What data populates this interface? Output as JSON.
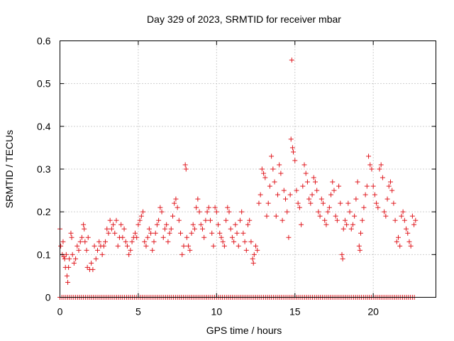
{
  "chart_data": {
    "type": "scatter",
    "title": "Day 329 of 2023, SRMTID for receiver mbar",
    "xlabel": "GPS time / hours",
    "ylabel": "SRMTID / TECUs",
    "xlim": [
      0,
      24
    ],
    "ylim": [
      0,
      0.6
    ],
    "x_ticks": [
      0,
      5,
      10,
      15,
      20
    ],
    "x_tick_labels": [
      "0",
      "5",
      "10",
      "15",
      "20"
    ],
    "y_ticks": [
      0,
      0.1,
      0.2,
      0.3,
      0.4,
      0.5,
      0.6
    ],
    "y_tick_labels": [
      "0",
      "0.1",
      "0.2",
      "0.3",
      "0.4",
      "0.5",
      "0.6"
    ],
    "grid": true,
    "legend": "none",
    "marker": "+",
    "color": "#e0191f",
    "series": [
      {
        "name": "SRMTID",
        "points": [
          [
            0.0,
            0.16
          ],
          [
            0.05,
            0.12
          ],
          [
            0.15,
            0.1
          ],
          [
            0.2,
            0.13
          ],
          [
            0.25,
            0.095
          ],
          [
            0.3,
            0.09
          ],
          [
            0.35,
            0.07
          ],
          [
            0.4,
            0.1
          ],
          [
            0.45,
            0.05
          ],
          [
            0.5,
            0.035
          ],
          [
            0.55,
            0.07
          ],
          [
            0.6,
            0.09
          ],
          [
            0.7,
            0.15
          ],
          [
            0.75,
            0.14
          ],
          [
            0.8,
            0.1
          ],
          [
            0.9,
            0.08
          ],
          [
            1.0,
            0.09
          ],
          [
            1.1,
            0.12
          ],
          [
            1.2,
            0.11
          ],
          [
            1.3,
            0.13
          ],
          [
            1.4,
            0.14
          ],
          [
            1.5,
            0.17
          ],
          [
            1.55,
            0.16
          ],
          [
            1.6,
            0.13
          ],
          [
            1.7,
            0.11
          ],
          [
            1.75,
            0.07
          ],
          [
            1.8,
            0.14
          ],
          [
            1.9,
            0.065
          ],
          [
            2.0,
            0.08
          ],
          [
            2.1,
            0.065
          ],
          [
            2.2,
            0.12
          ],
          [
            2.3,
            0.09
          ],
          [
            2.4,
            0.11
          ],
          [
            2.5,
            0.13
          ],
          [
            2.6,
            0.12
          ],
          [
            2.7,
            0.1
          ],
          [
            2.8,
            0.12
          ],
          [
            2.9,
            0.13
          ],
          [
            3.0,
            0.16
          ],
          [
            3.1,
            0.15
          ],
          [
            3.2,
            0.18
          ],
          [
            3.3,
            0.16
          ],
          [
            3.4,
            0.17
          ],
          [
            3.5,
            0.15
          ],
          [
            3.6,
            0.18
          ],
          [
            3.7,
            0.12
          ],
          [
            3.8,
            0.14
          ],
          [
            3.9,
            0.17
          ],
          [
            4.0,
            0.14
          ],
          [
            4.1,
            0.16
          ],
          [
            4.2,
            0.13
          ],
          [
            4.3,
            0.12
          ],
          [
            4.4,
            0.1
          ],
          [
            4.5,
            0.11
          ],
          [
            4.6,
            0.13
          ],
          [
            4.7,
            0.14
          ],
          [
            4.8,
            0.15
          ],
          [
            4.9,
            0.14
          ],
          [
            5.0,
            0.17
          ],
          [
            5.1,
            0.18
          ],
          [
            5.2,
            0.19
          ],
          [
            5.3,
            0.2
          ],
          [
            5.4,
            0.13
          ],
          [
            5.5,
            0.12
          ],
          [
            5.6,
            0.14
          ],
          [
            5.7,
            0.16
          ],
          [
            5.8,
            0.15
          ],
          [
            5.9,
            0.11
          ],
          [
            6.0,
            0.13
          ],
          [
            6.1,
            0.15
          ],
          [
            6.2,
            0.17
          ],
          [
            6.3,
            0.18
          ],
          [
            6.4,
            0.21
          ],
          [
            6.5,
            0.2
          ],
          [
            6.6,
            0.14
          ],
          [
            6.7,
            0.16
          ],
          [
            6.8,
            0.17
          ],
          [
            6.9,
            0.13
          ],
          [
            7.0,
            0.15
          ],
          [
            7.1,
            0.16
          ],
          [
            7.2,
            0.19
          ],
          [
            7.3,
            0.22
          ],
          [
            7.4,
            0.23
          ],
          [
            7.5,
            0.21
          ],
          [
            7.6,
            0.18
          ],
          [
            7.7,
            0.15
          ],
          [
            7.8,
            0.1
          ],
          [
            7.9,
            0.12
          ],
          [
            8.0,
            0.31
          ],
          [
            8.05,
            0.3
          ],
          [
            8.1,
            0.14
          ],
          [
            8.2,
            0.12
          ],
          [
            8.3,
            0.11
          ],
          [
            8.4,
            0.15
          ],
          [
            8.5,
            0.17
          ],
          [
            8.6,
            0.16
          ],
          [
            8.7,
            0.21
          ],
          [
            8.8,
            0.23
          ],
          [
            8.9,
            0.2
          ],
          [
            9.0,
            0.17
          ],
          [
            9.1,
            0.16
          ],
          [
            9.2,
            0.14
          ],
          [
            9.3,
            0.18
          ],
          [
            9.4,
            0.2
          ],
          [
            9.5,
            0.21
          ],
          [
            9.6,
            0.18
          ],
          [
            9.7,
            0.15
          ],
          [
            9.8,
            0.12
          ],
          [
            9.9,
            0.21
          ],
          [
            10.0,
            0.2
          ],
          [
            10.1,
            0.17
          ],
          [
            10.2,
            0.15
          ],
          [
            10.3,
            0.14
          ],
          [
            10.4,
            0.13
          ],
          [
            10.5,
            0.12
          ],
          [
            10.6,
            0.18
          ],
          [
            10.7,
            0.21
          ],
          [
            10.8,
            0.2
          ],
          [
            10.9,
            0.16
          ],
          [
            11.0,
            0.14
          ],
          [
            11.1,
            0.13
          ],
          [
            11.2,
            0.17
          ],
          [
            11.3,
            0.15
          ],
          [
            11.4,
            0.12
          ],
          [
            11.5,
            0.18
          ],
          [
            11.6,
            0.2
          ],
          [
            11.7,
            0.15
          ],
          [
            11.8,
            0.13
          ],
          [
            11.9,
            0.11
          ],
          [
            12.0,
            0.17
          ],
          [
            12.1,
            0.18
          ],
          [
            12.2,
            0.13
          ],
          [
            12.3,
            0.09
          ],
          [
            12.35,
            0.08
          ],
          [
            12.4,
            0.1
          ],
          [
            12.5,
            0.12
          ],
          [
            12.6,
            0.11
          ],
          [
            12.7,
            0.22
          ],
          [
            12.8,
            0.24
          ],
          [
            12.9,
            0.3
          ],
          [
            13.0,
            0.29
          ],
          [
            13.1,
            0.28
          ],
          [
            13.2,
            0.19
          ],
          [
            13.3,
            0.22
          ],
          [
            13.4,
            0.26
          ],
          [
            13.5,
            0.33
          ],
          [
            13.6,
            0.3
          ],
          [
            13.7,
            0.27
          ],
          [
            13.8,
            0.19
          ],
          [
            13.9,
            0.24
          ],
          [
            14.0,
            0.31
          ],
          [
            14.1,
            0.29
          ],
          [
            14.2,
            0.18
          ],
          [
            14.3,
            0.25
          ],
          [
            14.4,
            0.23
          ],
          [
            14.5,
            0.2
          ],
          [
            14.6,
            0.14
          ],
          [
            14.7,
            0.24
          ],
          [
            14.75,
            0.37
          ],
          [
            14.8,
            0.555
          ],
          [
            14.85,
            0.35
          ],
          [
            14.9,
            0.34
          ],
          [
            15.0,
            0.32
          ],
          [
            15.1,
            0.25
          ],
          [
            15.2,
            0.22
          ],
          [
            15.3,
            0.21
          ],
          [
            15.4,
            0.17
          ],
          [
            15.5,
            0.26
          ],
          [
            15.6,
            0.31
          ],
          [
            15.7,
            0.29
          ],
          [
            15.8,
            0.27
          ],
          [
            15.9,
            0.23
          ],
          [
            16.0,
            0.22
          ],
          [
            16.1,
            0.24
          ],
          [
            16.2,
            0.28
          ],
          [
            16.3,
            0.27
          ],
          [
            16.4,
            0.25
          ],
          [
            16.5,
            0.2
          ],
          [
            16.6,
            0.19
          ],
          [
            16.7,
            0.23
          ],
          [
            16.8,
            0.22
          ],
          [
            16.9,
            0.18
          ],
          [
            17.0,
            0.17
          ],
          [
            17.1,
            0.2
          ],
          [
            17.2,
            0.21
          ],
          [
            17.3,
            0.24
          ],
          [
            17.4,
            0.27
          ],
          [
            17.5,
            0.25
          ],
          [
            17.6,
            0.19
          ],
          [
            17.7,
            0.18
          ],
          [
            17.8,
            0.26
          ],
          [
            17.9,
            0.22
          ],
          [
            18.0,
            0.1
          ],
          [
            18.05,
            0.09
          ],
          [
            18.1,
            0.16
          ],
          [
            18.2,
            0.18
          ],
          [
            18.3,
            0.17
          ],
          [
            18.4,
            0.22
          ],
          [
            18.5,
            0.2
          ],
          [
            18.6,
            0.16
          ],
          [
            18.7,
            0.17
          ],
          [
            18.8,
            0.19
          ],
          [
            18.9,
            0.23
          ],
          [
            19.0,
            0.27
          ],
          [
            19.1,
            0.12
          ],
          [
            19.15,
            0.11
          ],
          [
            19.2,
            0.15
          ],
          [
            19.3,
            0.18
          ],
          [
            19.4,
            0.21
          ],
          [
            19.5,
            0.24
          ],
          [
            19.6,
            0.26
          ],
          [
            19.7,
            0.33
          ],
          [
            19.8,
            0.31
          ],
          [
            19.9,
            0.3
          ],
          [
            20.0,
            0.26
          ],
          [
            20.1,
            0.24
          ],
          [
            20.2,
            0.22
          ],
          [
            20.3,
            0.21
          ],
          [
            20.4,
            0.3
          ],
          [
            20.5,
            0.31
          ],
          [
            20.6,
            0.28
          ],
          [
            20.7,
            0.2
          ],
          [
            20.8,
            0.19
          ],
          [
            20.9,
            0.23
          ],
          [
            21.0,
            0.26
          ],
          [
            21.1,
            0.27
          ],
          [
            21.2,
            0.25
          ],
          [
            21.3,
            0.22
          ],
          [
            21.4,
            0.18
          ],
          [
            21.5,
            0.13
          ],
          [
            21.6,
            0.14
          ],
          [
            21.7,
            0.12
          ],
          [
            21.8,
            0.19
          ],
          [
            21.9,
            0.2
          ],
          [
            22.0,
            0.18
          ],
          [
            22.1,
            0.16
          ],
          [
            22.2,
            0.15
          ],
          [
            22.3,
            0.13
          ],
          [
            22.4,
            0.12
          ],
          [
            22.5,
            0.19
          ],
          [
            22.6,
            0.17
          ],
          [
            22.7,
            0.18
          ]
        ],
        "zero_x_range": [
          0,
          22.7
        ]
      }
    ]
  }
}
